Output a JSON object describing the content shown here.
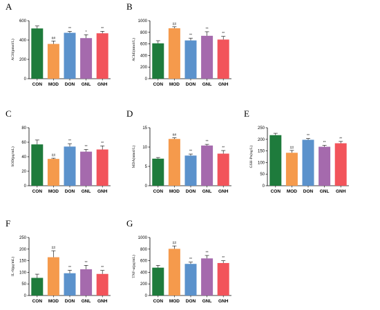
{
  "colors": {
    "CON": "#1e7b3c",
    "MOD": "#f59a4c",
    "DON": "#5b92cc",
    "GNL": "#a56aad",
    "GNH": "#f2545b"
  },
  "chart_data": [
    {
      "panel": "A",
      "type": "bar",
      "ylabel": "ACH(pmol/L)",
      "categories": [
        "CON",
        "MOD",
        "DON",
        "GNL",
        "GNH"
      ],
      "values": [
        520,
        360,
        475,
        420,
        470
      ],
      "errors": [
        25,
        30,
        15,
        35,
        20
      ],
      "sig": [
        "",
        "##",
        "**",
        "*",
        "**"
      ],
      "ylim": [
        0,
        600
      ],
      "yticks": [
        0,
        200,
        400,
        600
      ]
    },
    {
      "panel": "B",
      "type": "bar",
      "ylabel": "AChE(nmol/L)",
      "categories": [
        "CON",
        "MOD",
        "DON",
        "GNL",
        "GNH"
      ],
      "values": [
        610,
        870,
        660,
        740,
        675
      ],
      "errors": [
        45,
        25,
        40,
        70,
        55
      ],
      "sig": [
        "",
        "##",
        "**",
        "**",
        "**"
      ],
      "ylim": [
        0,
        1000
      ],
      "yticks": [
        0,
        200,
        400,
        600,
        800,
        1000
      ]
    },
    {
      "panel": "C",
      "type": "bar",
      "ylabel": "SOD(pg/mL)",
      "categories": [
        "CON",
        "MOD",
        "DON",
        "GNL",
        "GNH"
      ],
      "values": [
        57,
        37,
        54,
        47,
        50
      ],
      "errors": [
        6,
        1,
        4,
        3,
        5
      ],
      "sig": [
        "",
        "##",
        "**",
        "**",
        "**"
      ],
      "ylim": [
        0,
        80
      ],
      "yticks": [
        0,
        20,
        40,
        60,
        80
      ]
    },
    {
      "panel": "D",
      "type": "bar",
      "ylabel": "MDA(nmol/L)",
      "categories": [
        "CON",
        "MOD",
        "DON",
        "GNL",
        "GNH"
      ],
      "values": [
        7.0,
        12.1,
        7.8,
        10.4,
        8.3
      ],
      "errors": [
        0.3,
        0.3,
        0.4,
        0.3,
        0.8
      ],
      "sig": [
        "",
        "##",
        "**",
        "**",
        "**"
      ],
      "ylim": [
        0,
        15
      ],
      "yticks": [
        0,
        5,
        10,
        15
      ]
    },
    {
      "panel": "E",
      "type": "bar",
      "ylabel": "GSH-Px(ng/L)",
      "categories": [
        "CON",
        "MOD",
        "DON",
        "GNL",
        "GNH"
      ],
      "values": [
        218,
        142,
        198,
        168,
        183
      ],
      "errors": [
        8,
        10,
        6,
        6,
        8
      ],
      "sig": [
        "",
        "##",
        "**",
        "**",
        "**"
      ],
      "ylim": [
        0,
        250
      ],
      "yticks": [
        0,
        50,
        100,
        150,
        200,
        250
      ]
    },
    {
      "panel": "F",
      "type": "bar",
      "ylabel": "IL-6(pg/mL)",
      "categories": [
        "CON",
        "MOD",
        "DON",
        "GNL",
        "GNH"
      ],
      "values": [
        76,
        165,
        96,
        113,
        93
      ],
      "errors": [
        16,
        28,
        13,
        17,
        15
      ],
      "sig": [
        "",
        "##",
        "**",
        "**",
        "**"
      ],
      "ylim": [
        0,
        250
      ],
      "yticks": [
        0,
        50,
        100,
        150,
        200,
        250
      ]
    },
    {
      "panel": "G",
      "type": "bar",
      "ylabel": "TNF-α(pg/mL)",
      "categories": [
        "CON",
        "MOD",
        "DON",
        "GNL",
        "GNH"
      ],
      "values": [
        480,
        805,
        545,
        640,
        560
      ],
      "errors": [
        40,
        50,
        30,
        50,
        40
      ],
      "sig": [
        "",
        "##",
        "**",
        "**",
        "**"
      ],
      "ylim": [
        0,
        1000
      ],
      "yticks": [
        0,
        200,
        400,
        600,
        800,
        1000
      ]
    }
  ]
}
